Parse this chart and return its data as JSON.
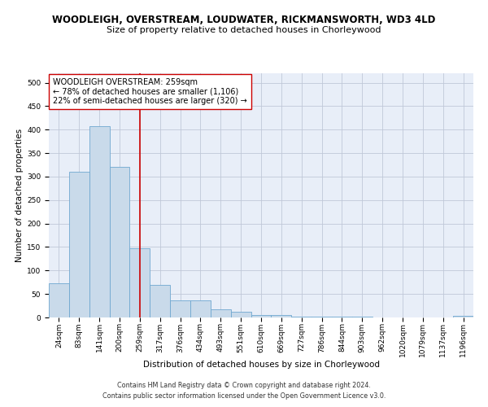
{
  "title_line1": "WOODLEIGH, OVERSTREAM, LOUDWATER, RICKMANSWORTH, WD3 4LD",
  "title_line2": "Size of property relative to detached houses in Chorleywood",
  "xlabel": "Distribution of detached houses by size in Chorleywood",
  "ylabel": "Number of detached properties",
  "bar_labels": [
    "24sqm",
    "83sqm",
    "141sqm",
    "200sqm",
    "259sqm",
    "317sqm",
    "376sqm",
    "434sqm",
    "493sqm",
    "551sqm",
    "610sqm",
    "669sqm",
    "727sqm",
    "786sqm",
    "844sqm",
    "903sqm",
    "962sqm",
    "1020sqm",
    "1079sqm",
    "1137sqm",
    "1196sqm"
  ],
  "bar_values": [
    72,
    310,
    408,
    320,
    148,
    70,
    37,
    37,
    18,
    12,
    6,
    6,
    2,
    2,
    2,
    2,
    0,
    0,
    0,
    0,
    4
  ],
  "bar_color": "#c9daea",
  "bar_edge_color": "#6fa8d0",
  "vline_x": 4,
  "vline_color": "#cc0000",
  "annotation_text": "WOODLEIGH OVERSTREAM: 259sqm\n← 78% of detached houses are smaller (1,106)\n22% of semi-detached houses are larger (320) →",
  "annotation_box_color": "#ffffff",
  "annotation_box_edge": "#cc0000",
  "ylim": [
    0,
    520
  ],
  "yticks": [
    0,
    50,
    100,
    150,
    200,
    250,
    300,
    350,
    400,
    450,
    500
  ],
  "grid_color": "#c0c8d8",
  "background_color": "#e8eef8",
  "footer_line1": "Contains HM Land Registry data © Crown copyright and database right 2024.",
  "footer_line2": "Contains public sector information licensed under the Open Government Licence v3.0.",
  "title_fontsize": 8.5,
  "subtitle_fontsize": 8,
  "axis_label_fontsize": 7.5,
  "tick_fontsize": 6.5,
  "annotation_fontsize": 7,
  "footer_fontsize": 5.8
}
